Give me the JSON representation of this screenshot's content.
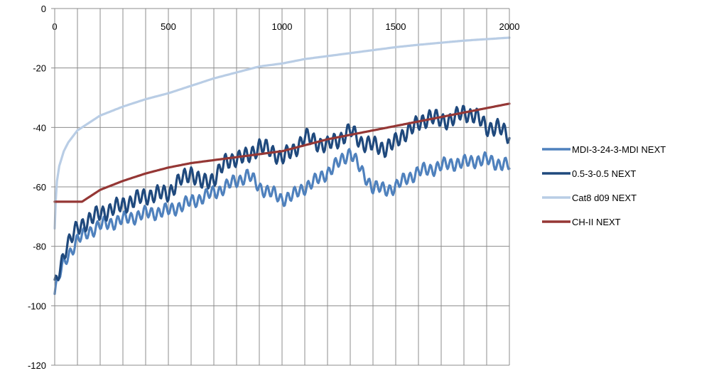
{
  "chart_data": {
    "type": "line",
    "title": "",
    "xlabel": "",
    "ylabel": "",
    "xlim": [
      0,
      2000
    ],
    "ylim": [
      -120,
      0
    ],
    "x_ticks": [
      0,
      500,
      1000,
      1500,
      2000
    ],
    "x_tick_labels": [
      "0",
      "500",
      "1000",
      "1500",
      "2000"
    ],
    "y_ticks": [
      0,
      -20,
      -40,
      -60,
      -80,
      -100,
      -120
    ],
    "y_tick_labels": [
      "0",
      "-20",
      "-40",
      "-60",
      "-80",
      "-100",
      "-120"
    ],
    "x_minor_grid_step": 100,
    "grid": true,
    "x_axis_position": "top",
    "legend_position": "right",
    "series": [
      {
        "name": "MDI-3-24-3-MDI  NEXT",
        "color": "#4f81bd",
        "x": [
          0,
          20,
          50,
          100,
          150,
          200,
          300,
          400,
          500,
          600,
          700,
          800,
          850,
          900,
          950,
          1000,
          1050,
          1100,
          1150,
          1200,
          1250,
          1300,
          1350,
          1400,
          1450,
          1500,
          1550,
          1600,
          1650,
          1700,
          1750,
          1800,
          1850,
          1900,
          1950,
          2000
        ],
        "values": [
          -96,
          -90,
          -84,
          -78,
          -75,
          -73,
          -71,
          -69,
          -68,
          -65,
          -62,
          -58,
          -56,
          -60,
          -62,
          -64,
          -63,
          -60,
          -58,
          -55,
          -52,
          -48,
          -55,
          -60,
          -61,
          -60,
          -57,
          -55,
          -54,
          -53,
          -52,
          -52,
          -51,
          -51,
          -52,
          -53
        ]
      },
      {
        "name": "0.5-3-0.5 NEXT",
        "color": "#1f497d",
        "x": [
          0,
          20,
          50,
          100,
          150,
          200,
          300,
          400,
          500,
          550,
          600,
          650,
          700,
          750,
          800,
          850,
          900,
          950,
          1000,
          1050,
          1100,
          1150,
          1200,
          1250,
          1300,
          1350,
          1400,
          1450,
          1500,
          1550,
          1600,
          1650,
          1700,
          1750,
          1800,
          1850,
          1900,
          1950,
          2000
        ],
        "values": [
          -94,
          -88,
          -80,
          -74,
          -71,
          -69,
          -66,
          -63,
          -62,
          -58,
          -55,
          -59,
          -57,
          -52,
          -50,
          -50,
          -46,
          -48,
          -50,
          -48,
          -43,
          -45,
          -46,
          -44,
          -41,
          -45,
          -46,
          -47,
          -45,
          -41,
          -39,
          -36,
          -38,
          -37,
          -35,
          -36,
          -40,
          -40,
          -43
        ]
      },
      {
        "name": "Cat8 d09 NEXT",
        "color": "#b9cde5",
        "x": [
          0,
          5,
          10,
          20,
          40,
          60,
          80,
          100,
          150,
          200,
          300,
          400,
          500,
          600,
          700,
          800,
          900,
          1000,
          1100,
          1200,
          1300,
          1400,
          1500,
          1600,
          1700,
          1800,
          1900,
          2000
        ],
        "values": [
          -74,
          -64,
          -58,
          -53,
          -48,
          -45,
          -43,
          -41,
          -38.5,
          -36,
          -33,
          -30.5,
          -28.5,
          -26,
          -23.5,
          -21.5,
          -19.5,
          -18.5,
          -17,
          -16,
          -15,
          -14,
          -13,
          -12.2,
          -11.5,
          -10.8,
          -10.3,
          -9.8
        ]
      },
      {
        "name": "CH-II NEXT",
        "color": "#953735",
        "x": [
          0,
          120,
          200,
          300,
          400,
          500,
          600,
          700,
          800,
          900,
          1000,
          1100,
          1200,
          1300,
          1400,
          1500,
          1600,
          1700,
          1800,
          1900,
          2000
        ],
        "values": [
          -65,
          -65,
          -61,
          -58,
          -55.5,
          -53.5,
          -52,
          -51,
          -50,
          -49,
          -48,
          -46,
          -44,
          -42.5,
          -41,
          -39.5,
          -38,
          -36.5,
          -35,
          -33.5,
          -32
        ]
      }
    ]
  }
}
